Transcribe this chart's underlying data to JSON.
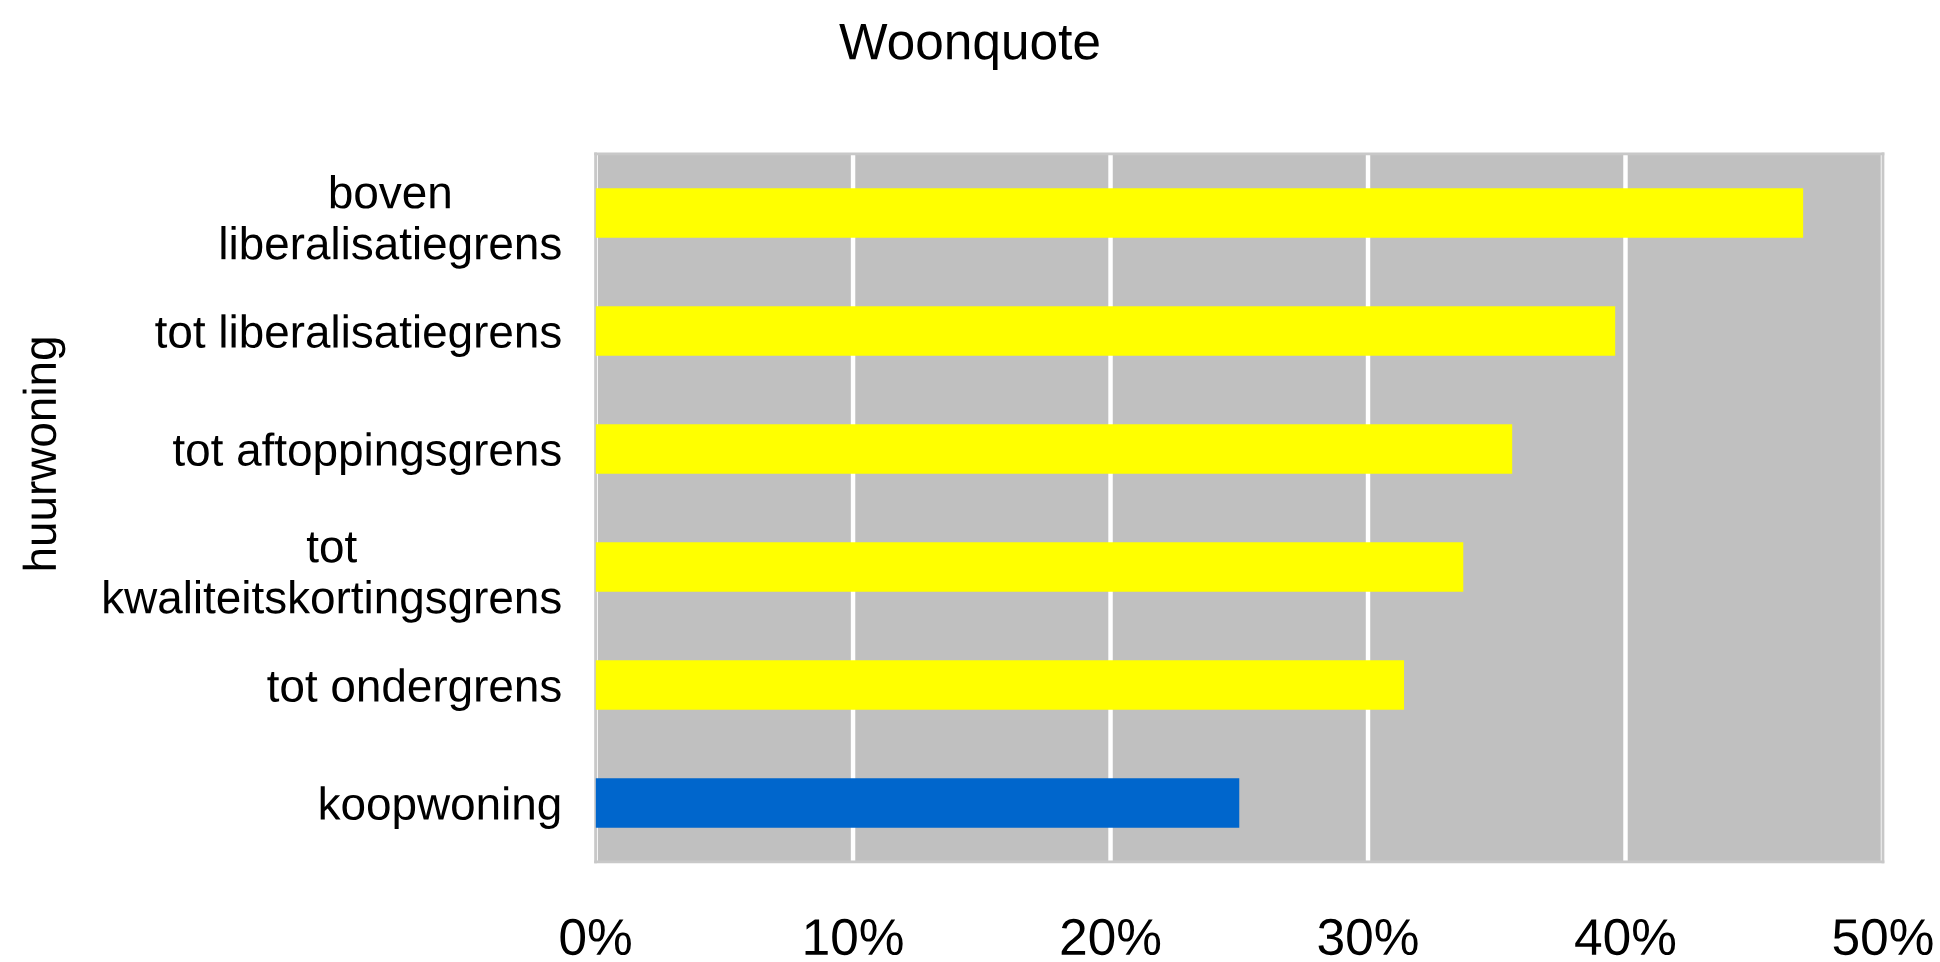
{
  "chart_data": {
    "type": "bar",
    "orientation": "horizontal",
    "title": "Woonquote",
    "categories": [
      "boven\nliberalisatiegrens",
      "tot liberalisatiegrens",
      "tot aftoppingsgrens",
      "tot\nkwaliteitskortingsgrens",
      "tot ondergrens",
      "koopwoning"
    ],
    "values": [
      46.9,
      39.6,
      35.6,
      33.7,
      31.4,
      25.0
    ],
    "colors": [
      "#ffff00",
      "#ffff00",
      "#ffff00",
      "#ffff00",
      "#ffff00",
      "#0066cc"
    ],
    "xlim": [
      0,
      50
    ],
    "xticks": [
      {
        "value": 0,
        "label": "0%"
      },
      {
        "value": 10,
        "label": "10%"
      },
      {
        "value": 20,
        "label": "20%"
      },
      {
        "value": 30,
        "label": "30%"
      },
      {
        "value": 40,
        "label": "40%"
      },
      {
        "value": 50,
        "label": "50%"
      }
    ],
    "annotations": [
      "huurwoning"
    ],
    "grid": "x",
    "legend": false
  }
}
